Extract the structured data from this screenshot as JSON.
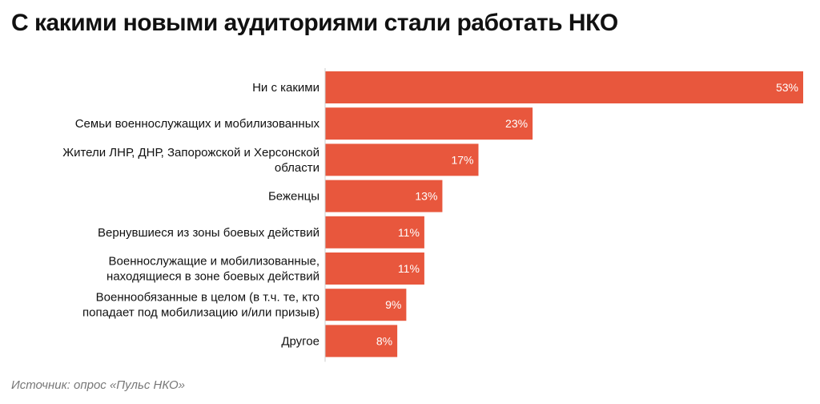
{
  "title": "С какими новыми аудиториями стали работать НКО",
  "source": "Источник: опрос «Пульс НКО»",
  "colors": {
    "bar": "#e8573d",
    "bar_label": "#ffffff",
    "text": "#111111",
    "axis": "#cccccc",
    "source": "#777777"
  },
  "chart_data": {
    "type": "bar",
    "orientation": "horizontal",
    "title": "С какими новыми аудиториями стали работать НКО",
    "xlabel": "",
    "ylabel": "",
    "unit": "%",
    "xlim": [
      0,
      53
    ],
    "categories": [
      "Ни с какими",
      "Семьи военнослужащих и мобилизованных",
      "Жители ЛНР, ДНР, Запорожской и Херсонской области",
      "Беженцы",
      "Вернувшиеся из зоны боевых действий",
      "Военнослужащие и мобилизованные, находящиеся в зоне боевых действий",
      "Военнообязанные в целом (в т.ч. те, кто попадает под мобилизацию и/или призыв)",
      "Другое"
    ],
    "category_lines": [
      [
        "Ни с какими"
      ],
      [
        "Семьи военнослужащих и мобилизованных"
      ],
      [
        "Жители ЛНР, ДНР, Запорожской и Херсонской",
        "области"
      ],
      [
        "Беженцы"
      ],
      [
        "Вернувшиеся из зоны боевых действий"
      ],
      [
        "Военнослужащие и мобилизованные,",
        "находящиеся в зоне боевых действий"
      ],
      [
        "Военнообязанные в целом (в т.ч. те, кто",
        "попадает под мобилизацию и/или призыв)"
      ],
      [
        "Другое"
      ]
    ],
    "values": [
      53,
      23,
      17,
      13,
      11,
      11,
      9,
      8
    ],
    "value_labels": [
      "53%",
      "23%",
      "17%",
      "13%",
      "11%",
      "11%",
      "9%",
      "8%"
    ],
    "grid": false,
    "legend": "none"
  }
}
